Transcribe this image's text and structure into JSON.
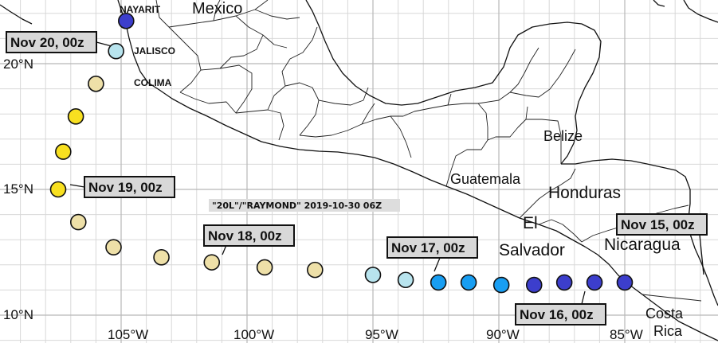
{
  "map_title": "\"20L\"/\"RAYMOND\" 2019-10-30 06Z",
  "countries": {
    "mexico": "Mexico",
    "guatemala": "Guatemala",
    "belize": "Belize",
    "honduras": "Honduras",
    "el": "El",
    "salvador": "Salvador",
    "nicaragua": "Nicaragua",
    "costa": "Costa",
    "rica": "Rica"
  },
  "states": {
    "nayarit": "NAYARIT",
    "jalisco": "JALISCO",
    "colima": "COLIMA"
  },
  "lat_labels": [
    "20°N",
    "15°N",
    "10°N"
  ],
  "lon_labels": [
    "105°W",
    "100°W",
    "95°W",
    "90°W",
    "85°W"
  ],
  "callouts": [
    "Nov 20, 00z",
    "Nov 19, 00z",
    "Nov 18, 00z",
    "Nov 17, 00z",
    "Nov 16, 00z",
    "Nov 15, 00z"
  ],
  "legend_colors": {
    "pale": "#eee0a8",
    "yellow": "#f8e020",
    "light_blue": "#b8e4ee",
    "blue": "#189ef2",
    "dark_blue": "#3c3ecc"
  },
  "track_points": [
    {
      "lon": 85.0,
      "lat": 11.3,
      "color": "dark_blue"
    },
    {
      "lon": 86.2,
      "lat": 11.3,
      "color": "dark_blue"
    },
    {
      "lon": 87.4,
      "lat": 11.3,
      "color": "dark_blue"
    },
    {
      "lon": 88.6,
      "lat": 11.2,
      "color": "dark_blue"
    },
    {
      "lon": 89.9,
      "lat": 11.2,
      "color": "blue"
    },
    {
      "lon": 91.2,
      "lat": 11.3,
      "color": "blue"
    },
    {
      "lon": 92.4,
      "lat": 11.3,
      "color": "blue"
    },
    {
      "lon": 93.7,
      "lat": 11.4,
      "color": "light_blue"
    },
    {
      "lon": 95.0,
      "lat": 11.6,
      "color": "light_blue"
    },
    {
      "lon": 97.3,
      "lat": 11.8,
      "color": "pale"
    },
    {
      "lon": 99.3,
      "lat": 11.9,
      "color": "pale"
    },
    {
      "lon": 101.4,
      "lat": 12.1,
      "color": "pale"
    },
    {
      "lon": 103.4,
      "lat": 12.3,
      "color": "pale"
    },
    {
      "lon": 105.3,
      "lat": 12.7,
      "color": "pale"
    },
    {
      "lon": 106.7,
      "lat": 13.7,
      "color": "pale"
    },
    {
      "lon": 107.5,
      "lat": 15.0,
      "color": "yellow"
    },
    {
      "lon": 107.3,
      "lat": 16.5,
      "color": "yellow"
    },
    {
      "lon": 106.8,
      "lat": 17.9,
      "color": "yellow"
    },
    {
      "lon": 106.0,
      "lat": 19.2,
      "color": "pale"
    },
    {
      "lon": 105.2,
      "lat": 20.5,
      "color": "light_blue"
    },
    {
      "lon": 104.8,
      "lat": 21.7,
      "color": "dark_blue"
    }
  ]
}
